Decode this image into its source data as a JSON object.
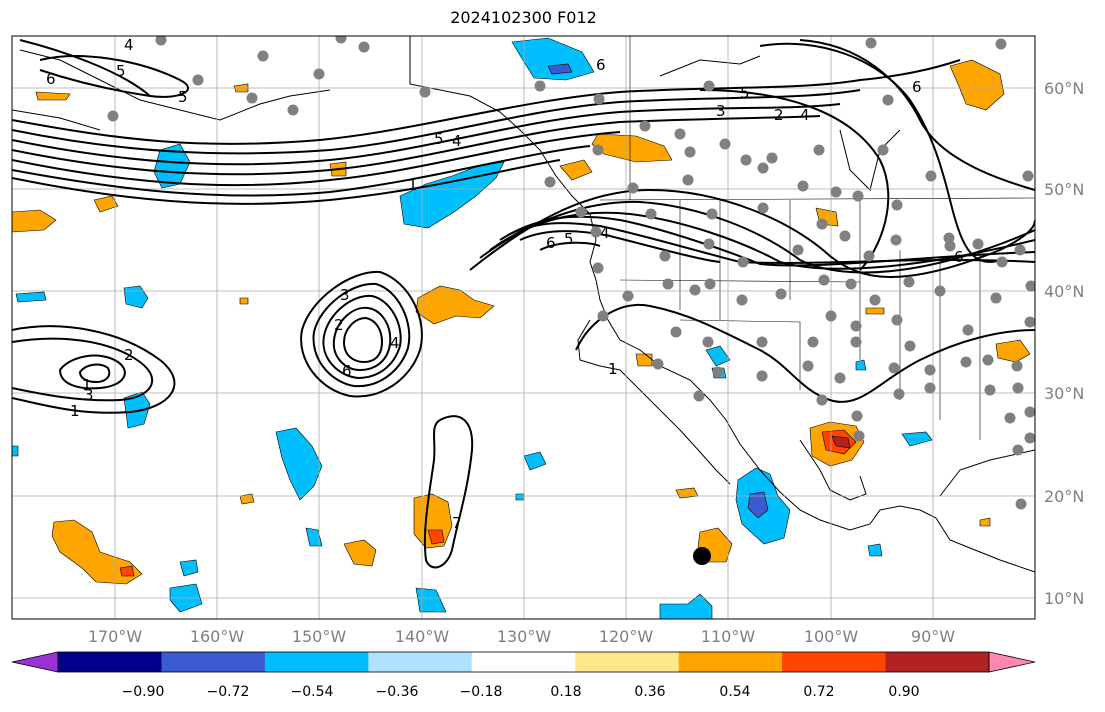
{
  "title": "2024102300 F012",
  "longitude_labels": [
    "170°W",
    "160°W",
    "150°W",
    "140°W",
    "130°W",
    "120°W",
    "110°W",
    "100°W",
    "90°W"
  ],
  "latitude_labels": [
    "60°N",
    "50°N",
    "40°N",
    "30°N",
    "20°N",
    "10°N"
  ],
  "colorbar": {
    "ticks": [
      "−0.90",
      "−0.72",
      "−0.54",
      "−0.36",
      "−0.18",
      "0.18",
      "0.36",
      "0.54",
      "0.72",
      "0.90"
    ],
    "colors": [
      "#9b30d9",
      "#00008b",
      "#3a5bd0",
      "#00bfff",
      "#aee2ff",
      "#ffffff",
      "#ffe889",
      "#ffa500",
      "#ff4500",
      "#b22222",
      "#ff88b0"
    ]
  },
  "contour_labels": [
    "6",
    "5",
    "5",
    "6",
    "5",
    "4",
    "1",
    "3",
    "2",
    "6",
    "5",
    "4",
    "6",
    "5",
    "4",
    "3",
    "2",
    "1",
    "3",
    "2",
    "1",
    "4",
    "6",
    "1",
    "7",
    "4",
    "6"
  ],
  "station_marker_color": "#808080",
  "fill_colors": {
    "positive_light": "#ffa500",
    "positive_strong": "#ff4500",
    "positive_max": "#b22222",
    "negative_light": "#00bfff",
    "negative_strong": "#3a5bd0",
    "negative_max": "#9b30d9"
  }
}
